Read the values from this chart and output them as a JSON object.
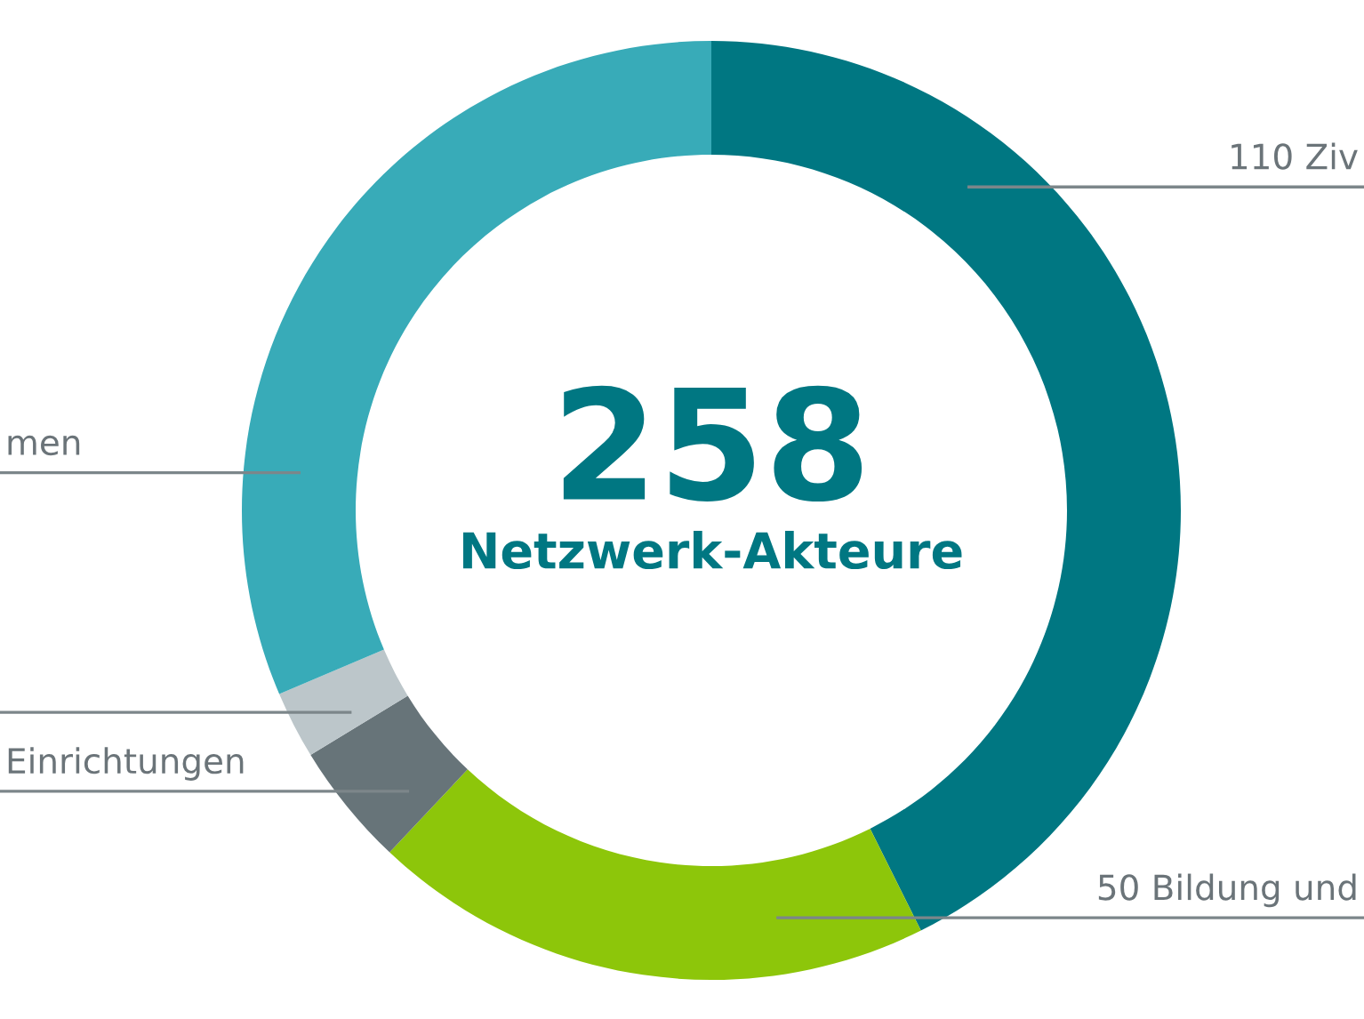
{
  "chart_data": {
    "type": "donut",
    "categories": [
      "110 Ziv",
      "50 Bildung und",
      "Einrichtungen",
      null,
      "men"
    ],
    "values": [
      110,
      50,
      11,
      6,
      81
    ],
    "colors": [
      "#007782",
      "#8dc60a",
      "#677479",
      "#bcc6ca",
      "#38abb8"
    ],
    "annotations": [
      "258",
      "Netzwerk-Akteure"
    ],
    "legend": false
  }
}
